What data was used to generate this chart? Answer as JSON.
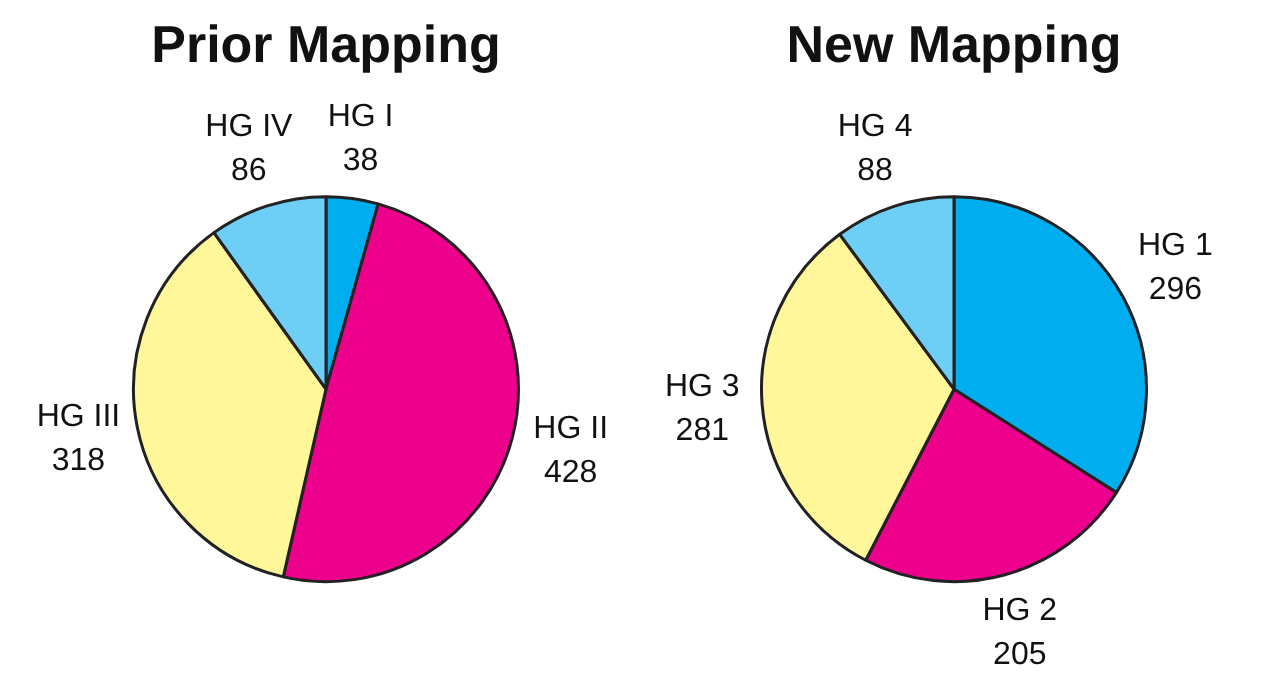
{
  "chart_data": [
    {
      "type": "pie",
      "title": "Prior Mapping",
      "categories": [
        "HG I",
        "HG II",
        "HG III",
        "HG IV"
      ],
      "values": [
        38,
        428,
        318,
        86
      ],
      "colors": [
        "#00aeef",
        "#ec008c",
        "#fff799",
        "#6dcff6"
      ],
      "data_labels": true,
      "legend": false
    },
    {
      "type": "pie",
      "title": "New Mapping",
      "categories": [
        "HG 1",
        "HG 2",
        "HG 3",
        "HG 4"
      ],
      "values": [
        296,
        205,
        281,
        88
      ],
      "colors": [
        "#00aeef",
        "#ec008c",
        "#fff799",
        "#6dcff6"
      ],
      "data_labels": true,
      "legend": false
    }
  ]
}
